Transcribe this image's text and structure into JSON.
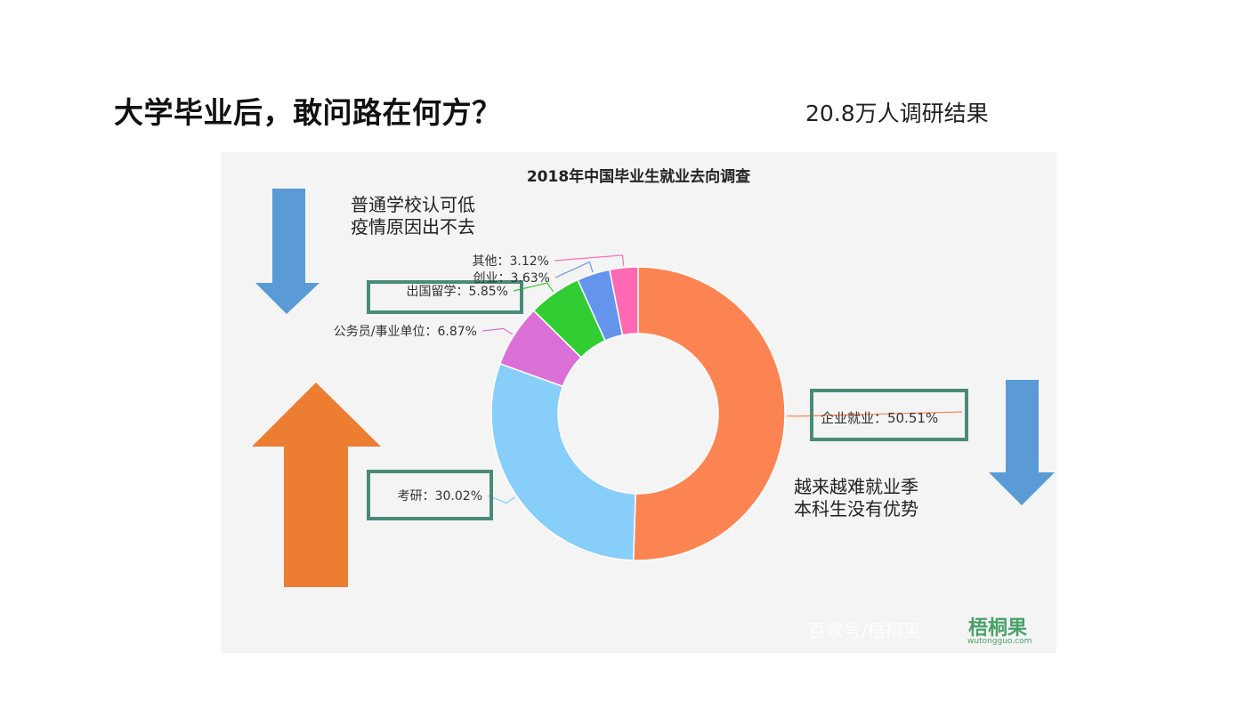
{
  "slide": {
    "title": "大学毕业后，敢问路在何方？",
    "subtitle": "20.8万人调研结果"
  },
  "notes": {
    "top": [
      "普通学校认可低",
      "疫情原因出不去"
    ],
    "right": [
      "越来越难就业季",
      "本科生没有优势"
    ]
  },
  "watermark": {
    "text": "百家号/梧桐果",
    "logo": "梧桐果",
    "url": "wutongguo.com"
  },
  "arrows": [
    {
      "name": "arrow-down-left",
      "direction": "down",
      "color": "#5b9bd5"
    },
    {
      "name": "arrow-up-orange",
      "direction": "up",
      "color": "#ed7d31"
    },
    {
      "name": "arrow-down-right",
      "direction": "down",
      "color": "#5b9bd5"
    }
  ],
  "chart_data": {
    "type": "pie",
    "variant": "donut",
    "title": "2018年中国毕业生就业去向调查",
    "slices": [
      {
        "label": "企业就业",
        "value": 50.51,
        "display": "企业就业：50.51%",
        "color": "#fc8452",
        "highlight": true
      },
      {
        "label": "考研",
        "value": 30.02,
        "display": "考研：30.02%",
        "color": "#87cefa",
        "highlight": true
      },
      {
        "label": "公务员/事业单位",
        "value": 6.87,
        "display": "公务员/事业单位：6.87%",
        "color": "#da70d6",
        "highlight": false
      },
      {
        "label": "出国留学",
        "value": 5.85,
        "display": "出国留学：5.85%",
        "color": "#32cd32",
        "highlight": true
      },
      {
        "label": "创业",
        "value": 3.63,
        "display": "创业：3.63%",
        "color": "#6495ed",
        "highlight": false
      },
      {
        "label": "其他",
        "value": 3.12,
        "display": "其他：3.12%",
        "color": "#ff69b4",
        "highlight": false
      }
    ],
    "highlight_box_color": "#4a8a7a"
  }
}
